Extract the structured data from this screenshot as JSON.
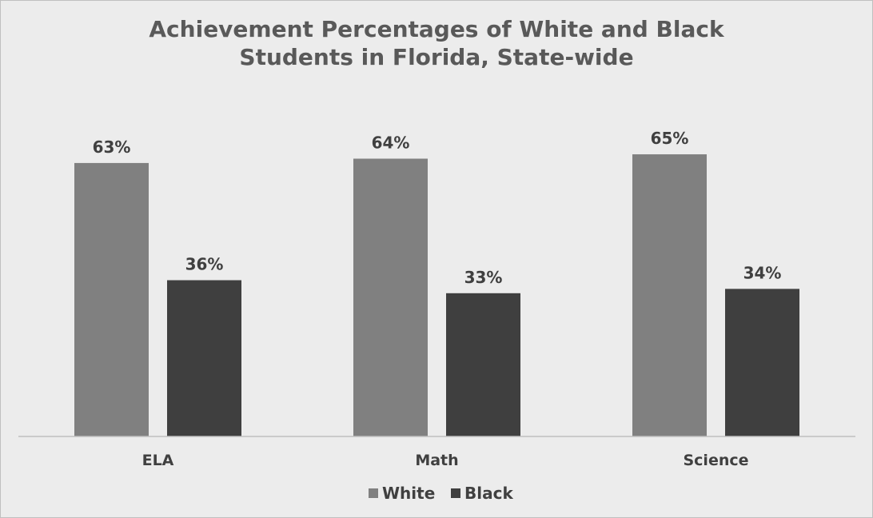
{
  "chart_data": {
    "type": "bar",
    "title_lines": [
      "Achievement Percentages of White and Black",
      "Students in Florida, State-wide"
    ],
    "categories": [
      "ELA",
      "Math",
      "Science"
    ],
    "series": [
      {
        "name": "White",
        "values": [
          63,
          64,
          65
        ],
        "color": "#808080"
      },
      {
        "name": "Black",
        "values": [
          36,
          33,
          34
        ],
        "color": "#3f3f3f"
      }
    ],
    "value_format": "percent",
    "ylim": [
      0,
      100
    ],
    "grid": false,
    "legend_position": "bottom",
    "xlabel": "",
    "ylabel": ""
  }
}
